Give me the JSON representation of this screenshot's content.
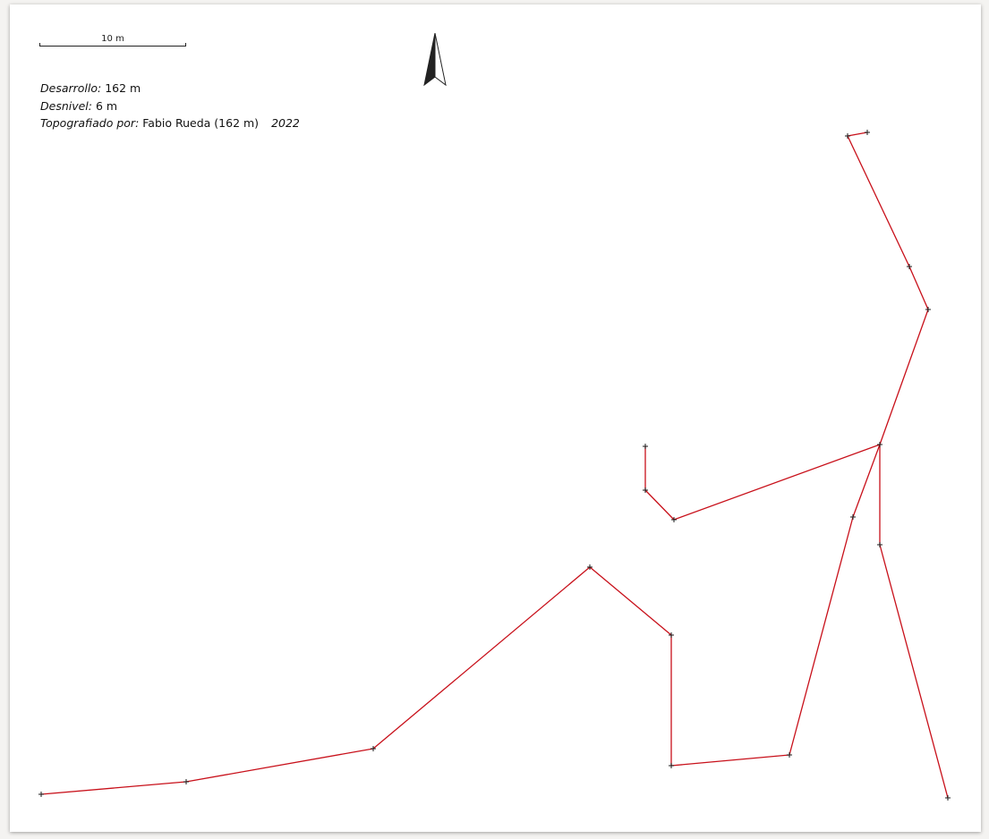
{
  "scale": {
    "label": "10 m"
  },
  "info": {
    "length_key": "Desarrollo:",
    "length_value": "162 m",
    "depth_key": "Desnivel:",
    "depth_value": "6 m",
    "surveyed_key": "Topografiado por:",
    "surveyed_value": "Fabio Rueda (162 m)",
    "year": "2022"
  },
  "north_arrow": {
    "icon": "north-arrow-icon"
  },
  "colors": {
    "survey_line": "#c8101a",
    "station": "#1a1a1a"
  }
}
